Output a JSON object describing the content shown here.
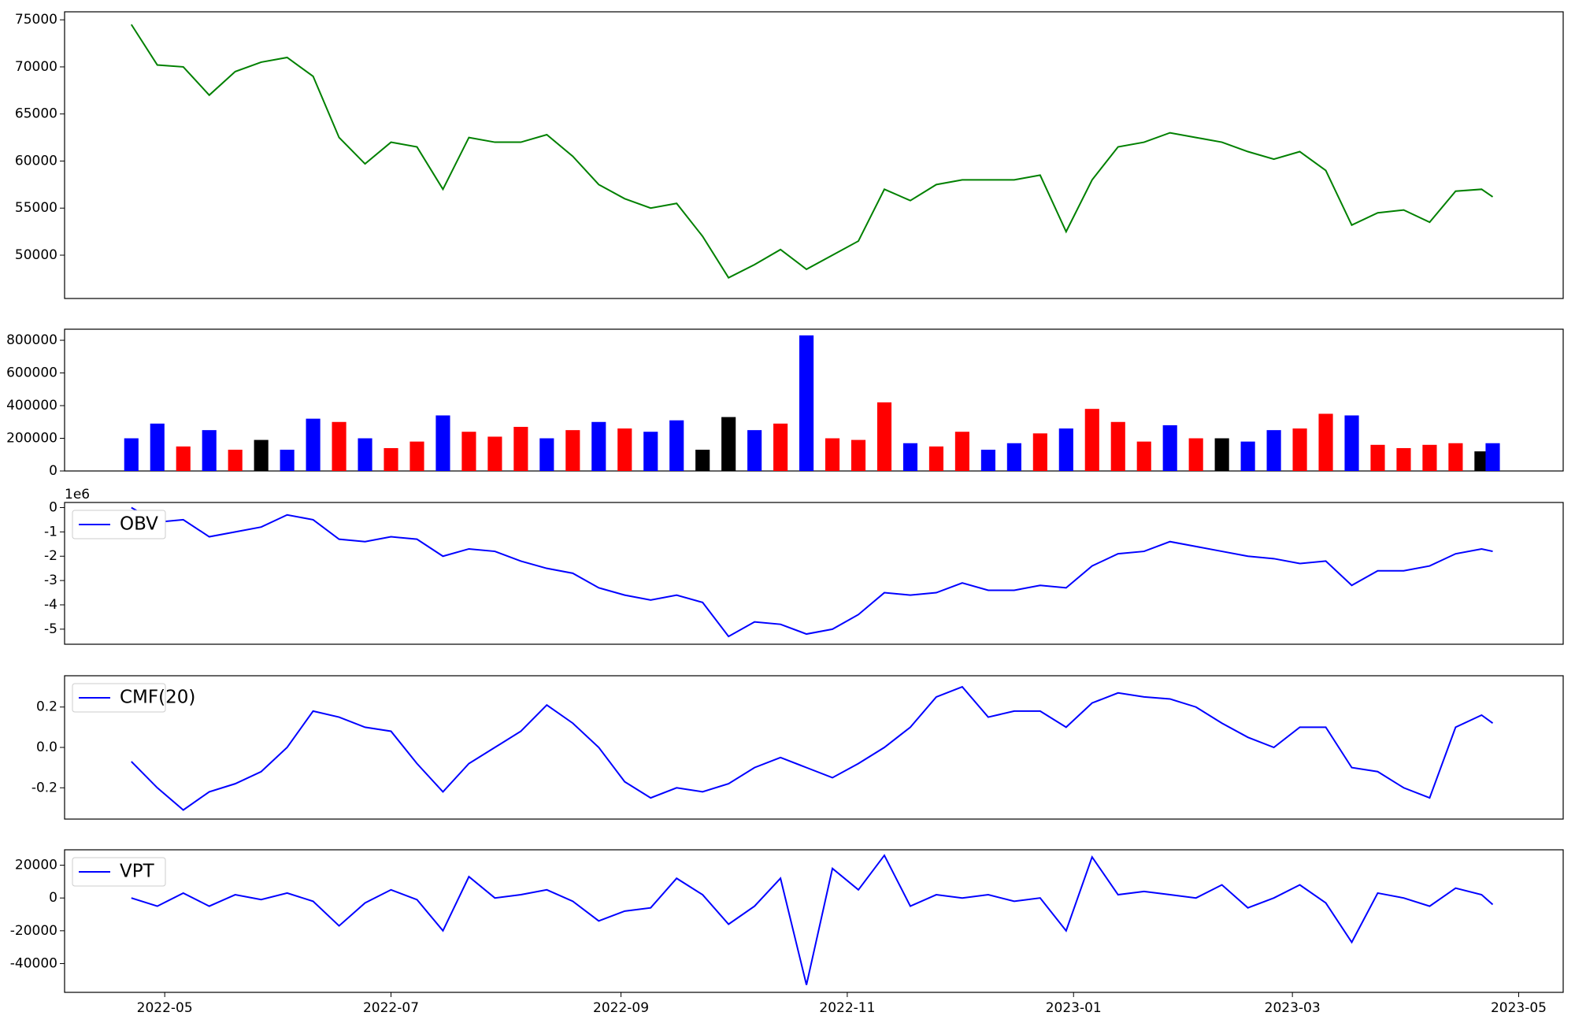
{
  "chart_data": [
    {
      "type": "line",
      "color": "green",
      "x": [
        "2022-04-22",
        "2022-04-29",
        "2022-05-06",
        "2022-05-13",
        "2022-05-20",
        "2022-05-27",
        "2022-06-03",
        "2022-06-10",
        "2022-06-17",
        "2022-06-24",
        "2022-07-01",
        "2022-07-08",
        "2022-07-15",
        "2022-07-22",
        "2022-07-29",
        "2022-08-05",
        "2022-08-12",
        "2022-08-19",
        "2022-08-26",
        "2022-09-02",
        "2022-09-09",
        "2022-09-16",
        "2022-09-23",
        "2022-09-30",
        "2022-10-07",
        "2022-10-14",
        "2022-10-21",
        "2022-10-28",
        "2022-11-04",
        "2022-11-11",
        "2022-11-18",
        "2022-11-25",
        "2022-12-02",
        "2022-12-09",
        "2022-12-16",
        "2022-12-23",
        "2022-12-30",
        "2023-01-06",
        "2023-01-13",
        "2023-01-20",
        "2023-01-27",
        "2023-02-03",
        "2023-02-10",
        "2023-02-17",
        "2023-02-24",
        "2023-03-03",
        "2023-03-10",
        "2023-03-17",
        "2023-03-24",
        "2023-03-31",
        "2023-04-07",
        "2023-04-14",
        "2023-04-21",
        "2023-04-24"
      ],
      "values": [
        74500,
        70200,
        70000,
        67000,
        69500,
        70500,
        71000,
        69000,
        62500,
        59700,
        62000,
        61500,
        57000,
        62500,
        62000,
        62000,
        62800,
        60500,
        57500,
        56000,
        55000,
        55500,
        52000,
        47600,
        49000,
        50600,
        48500,
        50000,
        51500,
        57000,
        55800,
        57500,
        58000,
        58000,
        58000,
        58500,
        52500,
        58000,
        61500,
        62000,
        63000,
        62500,
        62000,
        61000,
        60200,
        61000,
        59000,
        53200,
        54500,
        54800,
        53500,
        56800,
        57000,
        56200
      ],
      "xlim": [
        "2022-04-04",
        "2023-05-13"
      ],
      "ylim": [
        45400,
        75850
      ],
      "yticks": [
        50000,
        55000,
        60000,
        65000,
        70000,
        75000
      ]
    },
    {
      "type": "bar",
      "x": [
        "2022-04-22",
        "2022-04-29",
        "2022-05-06",
        "2022-05-13",
        "2022-05-20",
        "2022-05-27",
        "2022-06-03",
        "2022-06-10",
        "2022-06-17",
        "2022-06-24",
        "2022-07-01",
        "2022-07-08",
        "2022-07-15",
        "2022-07-22",
        "2022-07-29",
        "2022-08-05",
        "2022-08-12",
        "2022-08-19",
        "2022-08-26",
        "2022-09-02",
        "2022-09-09",
        "2022-09-16",
        "2022-09-23",
        "2022-09-30",
        "2022-10-07",
        "2022-10-14",
        "2022-10-21",
        "2022-10-28",
        "2022-11-04",
        "2022-11-11",
        "2022-11-18",
        "2022-11-25",
        "2022-12-02",
        "2022-12-09",
        "2022-12-16",
        "2022-12-23",
        "2022-12-30",
        "2023-01-06",
        "2023-01-13",
        "2023-01-20",
        "2023-01-27",
        "2023-02-03",
        "2023-02-10",
        "2023-02-17",
        "2023-02-24",
        "2023-03-03",
        "2023-03-10",
        "2023-03-17",
        "2023-03-24",
        "2023-03-31",
        "2023-04-07",
        "2023-04-14",
        "2023-04-21",
        "2023-04-24"
      ],
      "values": [
        200000,
        290000,
        150000,
        250000,
        130000,
        190000,
        130000,
        320000,
        300000,
        200000,
        140000,
        180000,
        340000,
        240000,
        210000,
        270000,
        200000,
        250000,
        300000,
        260000,
        240000,
        310000,
        130000,
        330000,
        250000,
        290000,
        830000,
        200000,
        190000,
        420000,
        170000,
        150000,
        240000,
        130000,
        170000,
        230000,
        260000,
        380000,
        300000,
        180000,
        280000,
        200000,
        200000,
        180000,
        250000,
        260000,
        350000,
        340000,
        160000,
        140000,
        160000,
        170000,
        120000,
        170000
      ],
      "colors": [
        "blue",
        "blue",
        "red",
        "blue",
        "red",
        "black",
        "blue",
        "blue",
        "red",
        "blue",
        "red",
        "red",
        "blue",
        "red",
        "red",
        "red",
        "blue",
        "red",
        "blue",
        "red",
        "blue",
        "blue",
        "black",
        "black",
        "blue",
        "red",
        "blue",
        "red",
        "red",
        "red",
        "blue",
        "red",
        "red",
        "blue",
        "blue",
        "red",
        "blue",
        "red",
        "red",
        "red",
        "blue",
        "red",
        "black",
        "blue",
        "blue",
        "red",
        "red",
        "blue",
        "red",
        "red",
        "red",
        "red",
        "black",
        "blue"
      ],
      "xlim": [
        "2022-04-04",
        "2023-05-13"
      ],
      "ylim": [
        0,
        867700
      ],
      "yticks": [
        0,
        200000,
        400000,
        600000,
        800000
      ]
    },
    {
      "type": "line",
      "legend": "upper left",
      "offset_label": "1e6",
      "x": [
        "2022-04-22",
        "2022-04-29",
        "2022-05-06",
        "2022-05-13",
        "2022-05-20",
        "2022-05-27",
        "2022-06-03",
        "2022-06-10",
        "2022-06-17",
        "2022-06-24",
        "2022-07-01",
        "2022-07-08",
        "2022-07-15",
        "2022-07-22",
        "2022-07-29",
        "2022-08-05",
        "2022-08-12",
        "2022-08-19",
        "2022-08-26",
        "2022-09-02",
        "2022-09-09",
        "2022-09-16",
        "2022-09-23",
        "2022-09-30",
        "2022-10-07",
        "2022-10-14",
        "2022-10-21",
        "2022-10-28",
        "2022-11-04",
        "2022-11-11",
        "2022-11-18",
        "2022-11-25",
        "2022-12-02",
        "2022-12-09",
        "2022-12-16",
        "2022-12-23",
        "2022-12-30",
        "2023-01-06",
        "2023-01-13",
        "2023-01-20",
        "2023-01-27",
        "2023-02-03",
        "2023-02-10",
        "2023-02-17",
        "2023-02-24",
        "2023-03-03",
        "2023-03-10",
        "2023-03-17",
        "2023-03-24",
        "2023-03-31",
        "2023-04-07",
        "2023-04-14",
        "2023-04-21",
        "2023-04-24"
      ],
      "series": [
        {
          "name": "OBV",
          "color": "blue",
          "values": [
            0,
            -0.6,
            -0.5,
            -1.2,
            -1.0,
            -0.8,
            -0.3,
            -0.5,
            -1.3,
            -1.4,
            -1.2,
            -1.3,
            -2.0,
            -1.7,
            -1.8,
            -2.2,
            -2.5,
            -2.7,
            -3.3,
            -3.6,
            -3.8,
            -3.6,
            -3.9,
            -5.3,
            -4.7,
            -4.8,
            -5.2,
            -5.0,
            -4.4,
            -3.5,
            -3.6,
            -3.5,
            -3.1,
            -3.4,
            -3.4,
            -3.2,
            -3.3,
            -2.4,
            -1.9,
            -1.8,
            -1.4,
            -1.6,
            -1.8,
            -2.0,
            -2.1,
            -2.3,
            -2.2,
            -3.2,
            -2.6,
            -2.6,
            -2.4,
            -1.9,
            -1.7,
            -1.8
          ]
        }
      ],
      "xlim": [
        "2022-04-04",
        "2023-05-13"
      ],
      "ylim": [
        -5.62,
        0.21
      ],
      "yticks": [
        -5,
        -4,
        -3,
        -2,
        -1,
        0
      ]
    },
    {
      "type": "line",
      "legend": "upper left",
      "x": [
        "2022-04-22",
        "2022-04-29",
        "2022-05-06",
        "2022-05-13",
        "2022-05-20",
        "2022-05-27",
        "2022-06-03",
        "2022-06-10",
        "2022-06-17",
        "2022-06-24",
        "2022-07-01",
        "2022-07-08",
        "2022-07-15",
        "2022-07-22",
        "2022-07-29",
        "2022-08-05",
        "2022-08-12",
        "2022-08-19",
        "2022-08-26",
        "2022-09-02",
        "2022-09-09",
        "2022-09-16",
        "2022-09-23",
        "2022-09-30",
        "2022-10-07",
        "2022-10-14",
        "2022-10-21",
        "2022-10-28",
        "2022-11-04",
        "2022-11-11",
        "2022-11-18",
        "2022-11-25",
        "2022-12-02",
        "2022-12-09",
        "2022-12-16",
        "2022-12-23",
        "2022-12-30",
        "2023-01-06",
        "2023-01-13",
        "2023-01-20",
        "2023-01-27",
        "2023-02-03",
        "2023-02-10",
        "2023-02-17",
        "2023-02-24",
        "2023-03-03",
        "2023-03-10",
        "2023-03-17",
        "2023-03-24",
        "2023-03-31",
        "2023-04-07",
        "2023-04-14",
        "2023-04-21",
        "2023-04-24"
      ],
      "series": [
        {
          "name": "CMF(20)",
          "color": "blue",
          "values": [
            -0.07,
            -0.2,
            -0.31,
            -0.22,
            -0.18,
            -0.12,
            0,
            0.18,
            0.15,
            0.1,
            0.08,
            -0.08,
            -0.22,
            -0.08,
            0,
            0.08,
            0.21,
            0.12,
            0,
            -0.17,
            -0.25,
            -0.2,
            -0.22,
            -0.18,
            -0.1,
            -0.05,
            -0.1,
            -0.15,
            -0.08,
            0,
            0.1,
            0.25,
            0.3,
            0.15,
            0.18,
            0.18,
            0.1,
            0.22,
            0.27,
            0.25,
            0.24,
            0.2,
            0.12,
            0.05,
            0,
            0.1,
            0.1,
            -0.1,
            -0.12,
            -0.2,
            -0.25,
            0.1,
            0.16,
            0.12
          ]
        }
      ],
      "xlim": [
        "2022-04-04",
        "2023-05-13"
      ],
      "ylim": [
        -0.355,
        0.355
      ],
      "yticks": [
        -0.2,
        {
          "value": 0,
          "label": "0.0"
        },
        0.2
      ]
    },
    {
      "type": "line",
      "legend": "upper left",
      "x": [
        "2022-04-22",
        "2022-04-29",
        "2022-05-06",
        "2022-05-13",
        "2022-05-20",
        "2022-05-27",
        "2022-06-03",
        "2022-06-10",
        "2022-06-17",
        "2022-06-24",
        "2022-07-01",
        "2022-07-08",
        "2022-07-15",
        "2022-07-22",
        "2022-07-29",
        "2022-08-05",
        "2022-08-12",
        "2022-08-19",
        "2022-08-26",
        "2022-09-02",
        "2022-09-09",
        "2022-09-16",
        "2022-09-23",
        "2022-09-30",
        "2022-10-07",
        "2022-10-14",
        "2022-10-21",
        "2022-10-28",
        "2022-11-04",
        "2022-11-11",
        "2022-11-18",
        "2022-11-25",
        "2022-12-02",
        "2022-12-09",
        "2022-12-16",
        "2022-12-23",
        "2022-12-30",
        "2023-01-06",
        "2023-01-13",
        "2023-01-20",
        "2023-01-27",
        "2023-02-03",
        "2023-02-10",
        "2023-02-17",
        "2023-02-24",
        "2023-03-03",
        "2023-03-10",
        "2023-03-17",
        "2023-03-24",
        "2023-03-31",
        "2023-04-07",
        "2023-04-14",
        "2023-04-21",
        "2023-04-24"
      ],
      "series": [
        {
          "name": "VPT",
          "color": "blue",
          "values": [
            0,
            -5000,
            3000,
            -5000,
            2000,
            -1000,
            3000,
            -2000,
            -17000,
            -3000,
            5000,
            -1000,
            -20000,
            13000,
            0,
            2000,
            5000,
            -2000,
            -14000,
            -8000,
            -6000,
            12000,
            2000,
            -16000,
            -5000,
            12000,
            -53000,
            18000,
            5000,
            26000,
            -5000,
            2000,
            0,
            2000,
            -2000,
            0,
            -20000,
            25000,
            2000,
            4000,
            2000,
            0,
            8000,
            -6000,
            0,
            8000,
            -3000,
            -27000,
            3000,
            0,
            -5000,
            6000,
            2000,
            -4000
          ]
        }
      ],
      "xlim": [
        "2022-04-04",
        "2023-05-13"
      ],
      "ylim": [
        -57560,
        29400
      ],
      "yticks": [
        -40000,
        -20000,
        0,
        20000
      ],
      "xticks": [
        {
          "value": "2022-05-01",
          "label": "2022-05"
        },
        {
          "value": "2022-07-01",
          "label": "2022-07"
        },
        {
          "value": "2022-09-01",
          "label": "2022-09"
        },
        {
          "value": "2022-11-01",
          "label": "2022-11"
        },
        {
          "value": "2023-01-01",
          "label": "2023-01"
        },
        {
          "value": "2023-03-01",
          "label": "2023-03"
        },
        {
          "value": "2023-05-01",
          "label": "2023-05"
        }
      ]
    }
  ]
}
